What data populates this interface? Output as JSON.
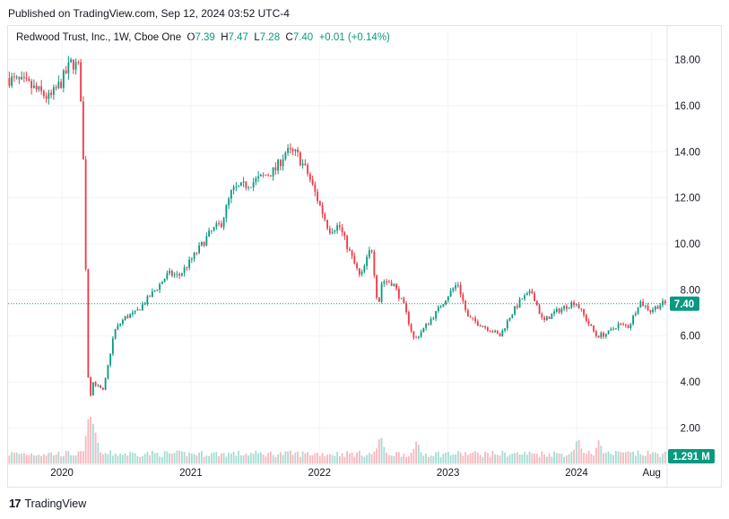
{
  "header": {
    "published": "Published on TradingView.com, Sep 12, 2024 03:52 UTC-4"
  },
  "legend": {
    "symbol": "Redwood Trust, Inc., 1W, Cboe One",
    "open_label": "O",
    "open": "7.39",
    "high_label": "H",
    "high": "7.47",
    "low_label": "L",
    "low": "7.28",
    "close_label": "C",
    "close": "7.40",
    "change": "+0.01 (+0.14%)"
  },
  "footer": {
    "brand": "TradingView",
    "logo_mark": "17"
  },
  "colors": {
    "up": "#089981",
    "down": "#f23645",
    "vol_up": "#a6dcd3",
    "vol_down": "#f7b7bd",
    "price_line": "#089981",
    "grid": "#f0f3fa"
  },
  "chart_data": {
    "type": "candlestick",
    "ylim": [
      1.2,
      18.8
    ],
    "y_ticks": [
      "18.00",
      "16.00",
      "14.00",
      "12.00",
      "10.00",
      "8.00",
      "6.00",
      "4.00",
      "2.00"
    ],
    "x_ticks": [
      "2020",
      "2021",
      "2022",
      "2023",
      "2024",
      "Aug"
    ],
    "last_price": "7.40",
    "last_volume": "1.291 M",
    "price_path": [
      [
        "2019-08",
        17.2
      ],
      [
        "2019-10",
        16.9
      ],
      [
        "2019-12",
        16.3
      ],
      [
        "2020-01",
        17.0
      ],
      [
        "2020-02",
        17.9
      ],
      [
        "2020-02-24",
        17.6
      ],
      [
        "2020-03-09",
        12.0
      ],
      [
        "2020-03-16",
        5.0
      ],
      [
        "2020-03-23",
        3.2
      ],
      [
        "2020-04",
        4.0
      ],
      [
        "2020-05",
        3.6
      ],
      [
        "2020-06",
        6.2
      ],
      [
        "2020-07",
        6.8
      ],
      [
        "2020-08",
        7.0
      ],
      [
        "2020-10",
        8.1
      ],
      [
        "2020-11",
        8.7
      ],
      [
        "2020-12",
        8.6
      ],
      [
        "2021-01",
        9.2
      ],
      [
        "2021-03",
        10.5
      ],
      [
        "2021-04",
        10.9
      ],
      [
        "2021-05",
        12.3
      ],
      [
        "2021-07",
        12.7
      ],
      [
        "2021-09",
        13.2
      ],
      [
        "2021-10",
        14.0
      ],
      [
        "2021-11",
        13.9
      ],
      [
        "2021-12",
        13.1
      ],
      [
        "2022-02",
        10.6
      ],
      [
        "2022-03",
        10.8
      ],
      [
        "2022-04",
        9.6
      ],
      [
        "2022-05",
        8.5
      ],
      [
        "2022-06",
        9.9
      ],
      [
        "2022-06-20",
        7.2
      ],
      [
        "2022-07",
        8.4
      ],
      [
        "2022-08",
        8.3
      ],
      [
        "2022-09",
        7.3
      ],
      [
        "2022-10",
        5.8
      ],
      [
        "2022-12",
        7.0
      ],
      [
        "2023-01",
        7.7
      ],
      [
        "2023-02",
        8.3
      ],
      [
        "2023-03",
        6.8
      ],
      [
        "2023-05",
        6.3
      ],
      [
        "2023-06",
        6.0
      ],
      [
        "2023-07",
        6.9
      ],
      [
        "2023-08",
        7.6
      ],
      [
        "2023-09",
        7.9
      ],
      [
        "2023-10",
        6.6
      ],
      [
        "2023-11",
        7.0
      ],
      [
        "2024-01",
        7.5
      ],
      [
        "2024-02",
        6.7
      ],
      [
        "2024-03",
        6.0
      ],
      [
        "2024-04",
        6.1
      ],
      [
        "2024-05",
        6.5
      ],
      [
        "2024-06",
        6.4
      ],
      [
        "2024-07",
        7.5
      ],
      [
        "2024-08",
        7.1
      ],
      [
        "2024-09",
        7.4
      ]
    ],
    "volume_spikes": [
      [
        "2020-03-16",
        1.0
      ],
      [
        "2020-03-23",
        0.85
      ],
      [
        "2020-04",
        0.6
      ],
      [
        "2022-06-20",
        0.55
      ],
      [
        "2022-10",
        0.45
      ],
      [
        "2024-01",
        0.5
      ],
      [
        "2024-03",
        0.45
      ]
    ]
  }
}
